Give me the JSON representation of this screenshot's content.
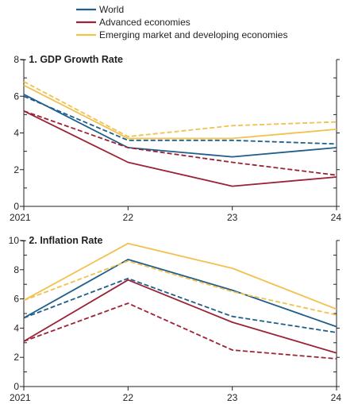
{
  "legend": [
    {
      "label": "World",
      "color": "#1f5f8b"
    },
    {
      "label": "Advanced economies",
      "color": "#9b2335"
    },
    {
      "label": "Emerging market and developing economies",
      "color": "#f2c14e"
    }
  ],
  "chart_data": [
    {
      "type": "line",
      "title": "1. GDP Growth Rate",
      "x": [
        "2021",
        "22",
        "23",
        "24"
      ],
      "ylim": [
        0,
        8
      ],
      "yticks": [
        0,
        2,
        4,
        6,
        8
      ],
      "grid": false,
      "legend_placement": "top-left",
      "series": [
        {
          "name": "World",
          "color": "#1f5f8b",
          "dashed": false,
          "values": [
            6.1,
            3.2,
            2.7,
            3.2
          ]
        },
        {
          "name": "World",
          "color": "#1f5f8b",
          "dashed": true,
          "values": [
            6.0,
            3.6,
            3.6,
            3.4
          ]
        },
        {
          "name": "Advanced economies",
          "color": "#9b2335",
          "dashed": false,
          "values": [
            5.2,
            2.4,
            1.1,
            1.6
          ]
        },
        {
          "name": "Advanced economies",
          "color": "#9b2335",
          "dashed": true,
          "values": [
            5.2,
            3.2,
            2.4,
            1.7
          ]
        },
        {
          "name": "Emerging market and developing economies",
          "color": "#f2c14e",
          "dashed": false,
          "values": [
            6.6,
            3.7,
            3.7,
            4.2
          ]
        },
        {
          "name": "Emerging market and developing economies",
          "color": "#f2c14e",
          "dashed": true,
          "values": [
            6.8,
            3.8,
            4.4,
            4.6
          ]
        }
      ]
    },
    {
      "type": "line",
      "title": "2. Inflation Rate",
      "x": [
        "2021",
        "22",
        "23",
        "24"
      ],
      "ylim": [
        0,
        10
      ],
      "yticks": [
        0,
        2,
        4,
        6,
        8,
        10
      ],
      "grid": false,
      "series": [
        {
          "name": "World",
          "color": "#1f5f8b",
          "dashed": false,
          "values": [
            4.7,
            8.7,
            6.6,
            4.1
          ]
        },
        {
          "name": "World",
          "color": "#1f5f8b",
          "dashed": true,
          "values": [
            4.7,
            7.4,
            4.8,
            3.7
          ]
        },
        {
          "name": "Advanced economies",
          "color": "#9b2335",
          "dashed": false,
          "values": [
            3.1,
            7.3,
            4.4,
            2.3
          ]
        },
        {
          "name": "Advanced economies",
          "color": "#9b2335",
          "dashed": true,
          "values": [
            3.1,
            5.7,
            2.5,
            1.9
          ]
        },
        {
          "name": "Emerging market and developing economies",
          "color": "#f2c14e",
          "dashed": false,
          "values": [
            5.9,
            9.8,
            8.1,
            5.3
          ]
        },
        {
          "name": "Emerging market and developing economies",
          "color": "#f2c14e",
          "dashed": true,
          "values": [
            5.9,
            8.6,
            6.5,
            4.9
          ]
        }
      ]
    }
  ]
}
